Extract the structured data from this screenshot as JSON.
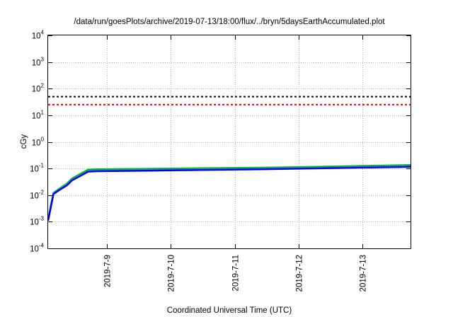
{
  "chart_data": {
    "type": "line",
    "title": "/data/run/goesPlots/archive/2019-07-13/18:00/flux/../bryn/5daysEarthAccumulated.plot",
    "xlabel": "Coordinated Universal Time (UTC)",
    "ylabel": "cGy",
    "y_scale": "log",
    "ylim": [
      0.0001,
      10000
    ],
    "xlim": [
      "2019-07-08T02:00",
      "2019-07-13T18:00"
    ],
    "grid": true,
    "y_ticks": [
      {
        "base": "10",
        "exp": "-4"
      },
      {
        "base": "10",
        "exp": "-3"
      },
      {
        "base": "10",
        "exp": "-2"
      },
      {
        "base": "10",
        "exp": "-1"
      },
      {
        "base": "10",
        "exp": "0"
      },
      {
        "base": "10",
        "exp": "1"
      },
      {
        "base": "10",
        "exp": "2"
      },
      {
        "base": "10",
        "exp": "3"
      },
      {
        "base": "10",
        "exp": "4"
      }
    ],
    "x_ticks": [
      {
        "label": "2019-7-9",
        "x": "2019-07-09T00:00"
      },
      {
        "label": "2019-7-10",
        "x": "2019-07-10T00:00"
      },
      {
        "label": "2019-7-11",
        "x": "2019-07-11T00:00"
      },
      {
        "label": "2019-7-12",
        "x": "2019-07-12T00:00"
      },
      {
        "label": "2019-7-13",
        "x": "2019-07-13T00:00"
      }
    ],
    "thresholds": [
      {
        "value": 50,
        "color": "#000000"
      },
      {
        "value": 25,
        "color": "#ff0000"
      }
    ],
    "series": [
      {
        "color": "#00bb00",
        "x": [
          "2019-07-08T02:00",
          "2019-07-08T03:00",
          "2019-07-08T04:00",
          "2019-07-08T06:00",
          "2019-07-08T09:00",
          "2019-07-08T11:00",
          "2019-07-08T14:00",
          "2019-07-08T17:00",
          "2019-07-08T20:00",
          "2019-07-09T12:00",
          "2019-07-10T12:00",
          "2019-07-11T12:00",
          "2019-07-12T12:00",
          "2019-07-13T18:00"
        ],
        "y": [
          0.0013,
          0.004,
          0.012,
          0.017,
          0.027,
          0.042,
          0.062,
          0.09,
          0.093,
          0.096,
          0.102,
          0.108,
          0.118,
          0.135
        ]
      },
      {
        "color": "#00aaaa",
        "x": [
          "2019-07-08T02:00",
          "2019-07-08T03:00",
          "2019-07-08T04:00",
          "2019-07-08T06:00",
          "2019-07-08T09:00",
          "2019-07-08T11:00",
          "2019-07-08T14:00",
          "2019-07-08T17:00",
          "2019-07-08T20:00",
          "2019-07-09T12:00",
          "2019-07-10T12:00",
          "2019-07-11T12:00",
          "2019-07-12T12:00",
          "2019-07-13T18:00"
        ],
        "y": [
          0.0012,
          0.0038,
          0.0115,
          0.016,
          0.025,
          0.039,
          0.057,
          0.083,
          0.086,
          0.089,
          0.095,
          0.101,
          0.11,
          0.125
        ]
      },
      {
        "color": "#0000ee",
        "x": [
          "2019-07-08T02:00",
          "2019-07-08T03:00",
          "2019-07-08T04:00",
          "2019-07-08T06:00",
          "2019-07-08T09:00",
          "2019-07-08T11:00",
          "2019-07-08T14:00",
          "2019-07-08T17:00",
          "2019-07-08T20:00",
          "2019-07-09T12:00",
          "2019-07-10T12:00",
          "2019-07-11T12:00",
          "2019-07-12T12:00",
          "2019-07-13T18:00"
        ],
        "y": [
          0.0011,
          0.0035,
          0.011,
          0.015,
          0.023,
          0.036,
          0.052,
          0.076,
          0.079,
          0.082,
          0.088,
          0.094,
          0.103,
          0.115
        ]
      }
    ]
  }
}
